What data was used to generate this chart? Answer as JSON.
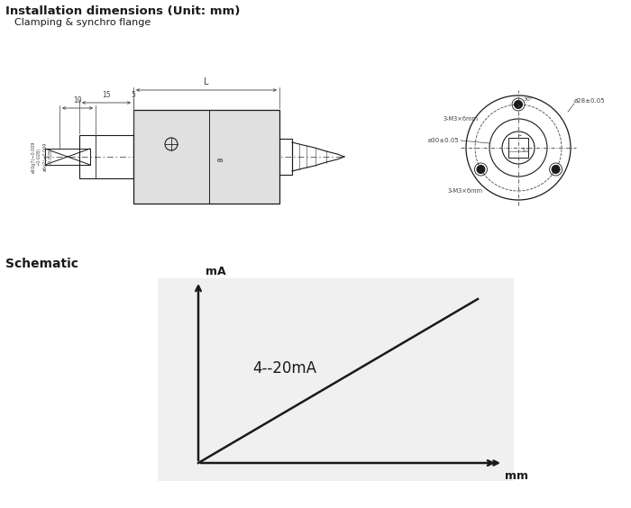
{
  "title_bold": "Installation dimensions (Unit: mm)",
  "subtitle": "Clamping & synchro flange",
  "schematic_title": "Schematic",
  "schematic_label_y": "mA",
  "schematic_label_x": "mm",
  "schematic_annotation": "4--20mA",
  "bg_color": "#ffffff",
  "line_color": "#1a1a1a",
  "dim_color": "#444444",
  "fig_width": 7.0,
  "fig_height": 5.64
}
